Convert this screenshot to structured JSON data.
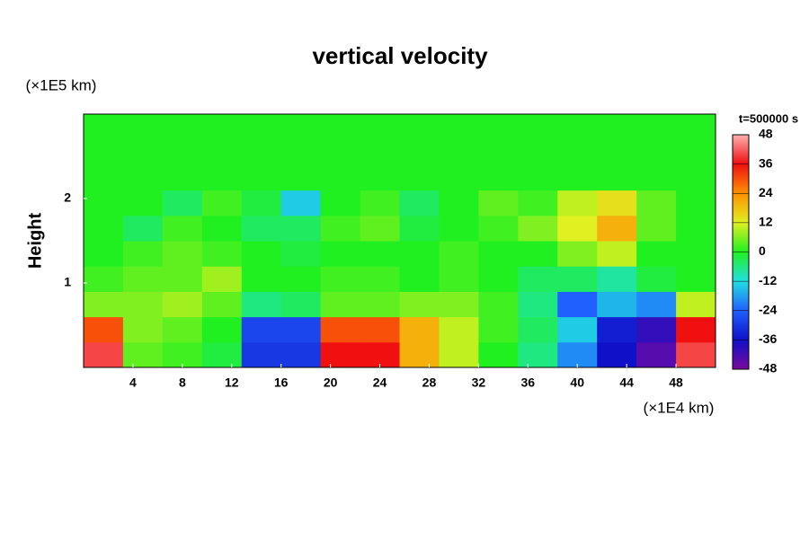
{
  "chart_data": {
    "type": "heatmap",
    "title": "vertical velocity",
    "y_units": "(×1E5 km)",
    "ylabel": "Height",
    "x_units": "(×1E4 km)",
    "annotation": "t=500000 s",
    "xlim": [
      0,
      51.2
    ],
    "ylim": [
      0,
      3
    ],
    "xticks": [
      4,
      8,
      12,
      16,
      20,
      24,
      28,
      32,
      36,
      40,
      44,
      48
    ],
    "yticks": [
      1,
      2
    ],
    "x_edges": [
      0,
      3.2,
      6.4,
      9.6,
      12.8,
      16,
      19.2,
      22.4,
      25.6,
      28.8,
      32,
      35.2,
      38.4,
      41.6,
      44.8,
      48,
      51.2
    ],
    "y_edges": [
      0,
      0.3,
      0.6,
      0.9,
      1.2,
      1.5,
      1.8,
      2.1,
      2.4,
      2.7,
      3
    ],
    "values": [
      [
        40,
        4,
        2,
        -2,
        -30,
        -30,
        36,
        36,
        20,
        10,
        0,
        -6,
        -20,
        -36,
        -44,
        40
      ],
      [
        30,
        6,
        4,
        0,
        -28,
        -28,
        30,
        30,
        20,
        10,
        2,
        -4,
        -14,
        -34,
        -40,
        36
      ],
      [
        6,
        6,
        8,
        4,
        -6,
        -4,
        4,
        4,
        6,
        6,
        2,
        -6,
        -24,
        -16,
        -20,
        10
      ],
      [
        2,
        4,
        4,
        8,
        0,
        0,
        2,
        2,
        0,
        2,
        0,
        -4,
        -4,
        -8,
        -2,
        0
      ],
      [
        0,
        2,
        4,
        2,
        0,
        -2,
        0,
        0,
        0,
        2,
        0,
        0,
        6,
        10,
        0,
        0
      ],
      [
        0,
        -4,
        2,
        0,
        -4,
        -4,
        2,
        4,
        -2,
        0,
        2,
        6,
        12,
        20,
        4,
        0
      ],
      [
        0,
        0,
        -4,
        2,
        -2,
        -14,
        0,
        2,
        -4,
        0,
        4,
        2,
        10,
        14,
        4,
        0
      ],
      [
        0,
        0,
        0,
        0,
        0,
        0,
        0,
        0,
        0,
        0,
        0,
        0,
        0,
        0,
        0,
        0
      ],
      [
        0,
        0,
        0,
        0,
        0,
        0,
        0,
        0,
        0,
        0,
        0,
        0,
        0,
        0,
        0,
        0
      ],
      [
        0,
        0,
        0,
        0,
        0,
        0,
        0,
        0,
        0,
        0,
        0,
        0,
        0,
        0,
        0,
        0
      ]
    ],
    "clim": [
      -48,
      48
    ],
    "cticks": [
      48,
      36,
      24,
      12,
      0,
      -12,
      -24,
      -36,
      -48
    ],
    "colorscale": [
      [
        -48,
        "#7a0aa0"
      ],
      [
        -36,
        "#1010c8"
      ],
      [
        -24,
        "#2060ff"
      ],
      [
        -12,
        "#20e0e0"
      ],
      [
        0,
        "#20f020"
      ],
      [
        12,
        "#e0f020"
      ],
      [
        24,
        "#ff9000"
      ],
      [
        36,
        "#f01010"
      ],
      [
        48,
        "#ffb0b0"
      ]
    ]
  }
}
